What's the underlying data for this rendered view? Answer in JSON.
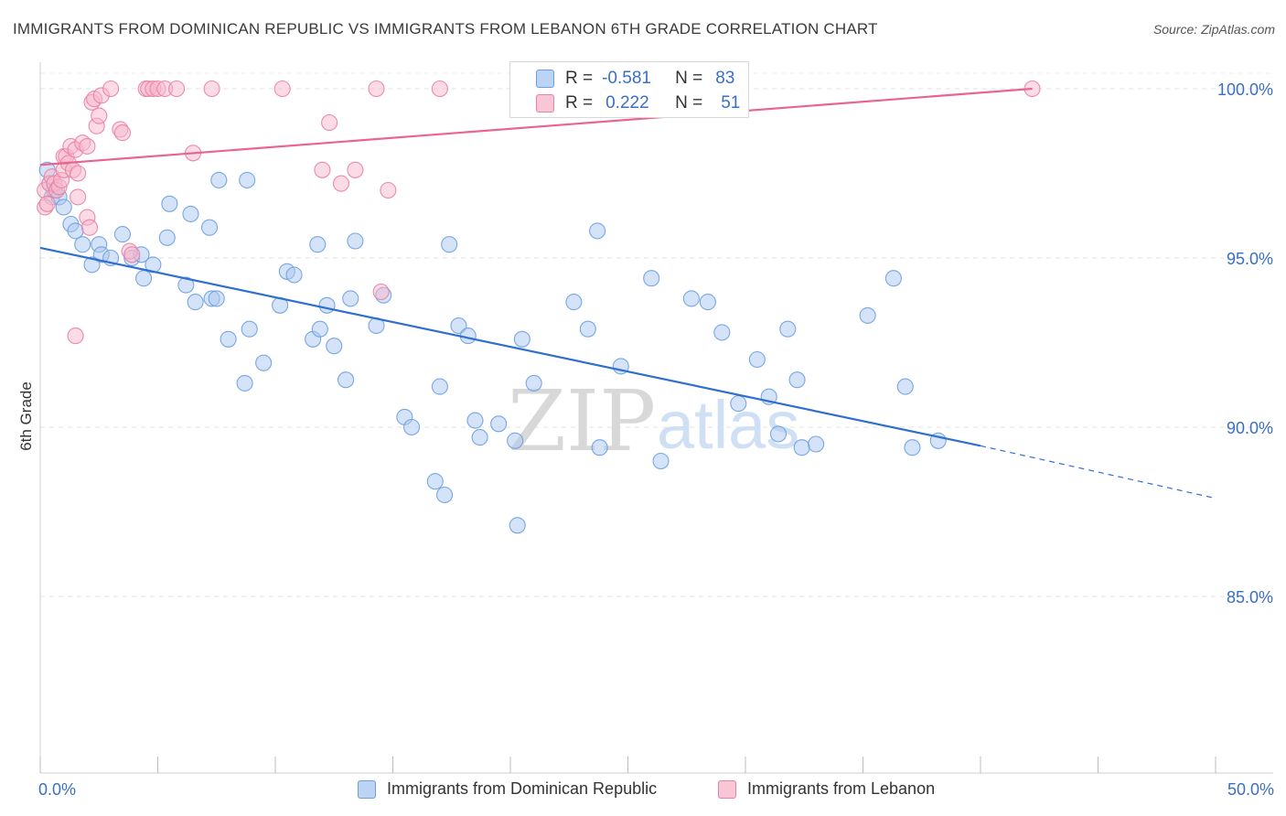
{
  "title": "IMMIGRANTS FROM DOMINICAN REPUBLIC VS IMMIGRANTS FROM LEBANON 6TH GRADE CORRELATION CHART",
  "source": "Source: ZipAtlas.com",
  "watermark": {
    "zip": "ZIP",
    "atlas": "atlas"
  },
  "stats": [
    {
      "r_label": "R =",
      "r_value": "-0.581",
      "n_label": "N =",
      "n_value": "83",
      "color": "#a9c8f0",
      "border": "#6a9ee0"
    },
    {
      "r_label": "R =",
      "r_value": "0.222",
      "n_label": "N =",
      "n_value": "51",
      "color": "#f7b8cc",
      "border": "#e97fa3"
    }
  ],
  "chart_data": {
    "type": "scatter",
    "title": "IMMIGRANTS FROM DOMINICAN REPUBLIC VS IMMIGRANTS FROM LEBANON 6TH GRADE CORRELATION CHART",
    "xlabel": "",
    "ylabel": "6th Grade",
    "xlim": [
      0,
      50
    ],
    "ylim": [
      80.5,
      101
    ],
    "x_tick_labels": [
      "0.0%",
      "50.0%"
    ],
    "y_ticks": [
      85,
      90,
      95,
      100
    ],
    "y_tick_labels": [
      "85.0%",
      "90.0%",
      "95.0%",
      "100.0%"
    ],
    "grid": true,
    "legend_position": "bottom-center",
    "series": [
      {
        "name": "Immigrants from Dominican Republic",
        "color": "#a9c8f0",
        "edge": "#6a9ee0",
        "trend": {
          "x0": 0,
          "y0": 95.3,
          "x1": 40,
          "y1": 89.45,
          "dash_to_x": 50,
          "dash_to_y": 87.9,
          "color": "#2f6fcf"
        },
        "points": [
          [
            0.3,
            97.6
          ],
          [
            0.4,
            97.2
          ],
          [
            0.5,
            96.8
          ],
          [
            0.6,
            97.0
          ],
          [
            0.8,
            96.8
          ],
          [
            1.0,
            96.5
          ],
          [
            1.3,
            96.0
          ],
          [
            1.5,
            95.8
          ],
          [
            1.8,
            95.4
          ],
          [
            2.5,
            95.4
          ],
          [
            2.6,
            95.1
          ],
          [
            3.0,
            95.0
          ],
          [
            3.5,
            95.7
          ],
          [
            3.9,
            95.0
          ],
          [
            4.3,
            95.1
          ],
          [
            2.2,
            94.8
          ],
          [
            4.8,
            94.8
          ],
          [
            5.5,
            96.6
          ],
          [
            5.4,
            95.6
          ],
          [
            6.4,
            96.3
          ],
          [
            7.2,
            95.9
          ],
          [
            7.6,
            97.3
          ],
          [
            8.8,
            97.3
          ],
          [
            4.4,
            94.4
          ],
          [
            6.2,
            94.2
          ],
          [
            6.6,
            93.7
          ],
          [
            7.3,
            93.8
          ],
          [
            7.5,
            93.8
          ],
          [
            8.9,
            92.9
          ],
          [
            8.0,
            92.6
          ],
          [
            9.5,
            91.9
          ],
          [
            8.7,
            91.3
          ],
          [
            10.2,
            93.6
          ],
          [
            10.5,
            94.6
          ],
          [
            10.8,
            94.5
          ],
          [
            11.8,
            95.4
          ],
          [
            12.2,
            93.6
          ],
          [
            13.4,
            95.5
          ],
          [
            13.0,
            91.4
          ],
          [
            11.6,
            92.6
          ],
          [
            11.9,
            92.9
          ],
          [
            12.5,
            92.4
          ],
          [
            14.3,
            93.0
          ],
          [
            13.2,
            93.8
          ],
          [
            14.6,
            93.9
          ],
          [
            15.5,
            90.3
          ],
          [
            15.8,
            90.0
          ],
          [
            17.4,
            95.4
          ],
          [
            17.8,
            93.0
          ],
          [
            18.2,
            92.7
          ],
          [
            17.0,
            91.2
          ],
          [
            18.5,
            90.2
          ],
          [
            19.5,
            90.1
          ],
          [
            18.7,
            89.7
          ],
          [
            20.2,
            89.6
          ],
          [
            20.5,
            92.6
          ],
          [
            21.0,
            91.3
          ],
          [
            22.7,
            93.7
          ],
          [
            23.3,
            92.9
          ],
          [
            23.7,
            95.8
          ],
          [
            23.8,
            89.4
          ],
          [
            24.7,
            91.8
          ],
          [
            26.0,
            94.4
          ],
          [
            27.7,
            93.8
          ],
          [
            28.4,
            93.7
          ],
          [
            26.4,
            89.0
          ],
          [
            29.0,
            92.8
          ],
          [
            29.7,
            90.7
          ],
          [
            30.5,
            92.0
          ],
          [
            31.0,
            90.9
          ],
          [
            31.4,
            89.8
          ],
          [
            31.8,
            92.9
          ],
          [
            32.2,
            91.4
          ],
          [
            32.4,
            89.4
          ],
          [
            33.0,
            89.5
          ],
          [
            35.2,
            93.3
          ],
          [
            36.3,
            94.4
          ],
          [
            36.8,
            91.2
          ],
          [
            37.1,
            89.4
          ],
          [
            38.2,
            89.6
          ],
          [
            17.2,
            88.0
          ],
          [
            16.8,
            88.4
          ],
          [
            20.3,
            87.1
          ]
        ]
      },
      {
        "name": "Immigrants from Lebanon",
        "color": "#f7b8cc",
        "edge": "#e97fa3",
        "trend": {
          "x0": 0,
          "y0": 97.75,
          "x1": 42.2,
          "y1": 100.0,
          "color": "#e8658f"
        },
        "points": [
          [
            0.2,
            97.0
          ],
          [
            0.2,
            96.5
          ],
          [
            0.3,
            96.6
          ],
          [
            0.4,
            97.2
          ],
          [
            0.5,
            97.4
          ],
          [
            0.6,
            97.2
          ],
          [
            0.7,
            97.0
          ],
          [
            0.8,
            97.1
          ],
          [
            0.9,
            97.3
          ],
          [
            1.0,
            97.6
          ],
          [
            1.0,
            98.0
          ],
          [
            1.1,
            98.0
          ],
          [
            1.2,
            97.8
          ],
          [
            1.3,
            98.3
          ],
          [
            1.4,
            97.6
          ],
          [
            1.5,
            98.2
          ],
          [
            1.6,
            97.5
          ],
          [
            1.6,
            96.8
          ],
          [
            1.8,
            98.4
          ],
          [
            2.0,
            98.3
          ],
          [
            2.2,
            99.6
          ],
          [
            2.3,
            99.7
          ],
          [
            2.4,
            98.9
          ],
          [
            2.5,
            99.2
          ],
          [
            2.6,
            99.8
          ],
          [
            3.0,
            100.0
          ],
          [
            3.4,
            98.8
          ],
          [
            3.5,
            98.7
          ],
          [
            3.8,
            95.2
          ],
          [
            3.9,
            95.1
          ],
          [
            4.5,
            100.0
          ],
          [
            4.6,
            100.0
          ],
          [
            4.8,
            100.0
          ],
          [
            5.0,
            100.0
          ],
          [
            5.3,
            100.0
          ],
          [
            5.8,
            100.0
          ],
          [
            6.5,
            98.1
          ],
          [
            7.3,
            100.0
          ],
          [
            10.3,
            100.0
          ],
          [
            12.3,
            99.0
          ],
          [
            12.0,
            97.6
          ],
          [
            12.8,
            97.2
          ],
          [
            13.4,
            97.6
          ],
          [
            14.3,
            100.0
          ],
          [
            17.0,
            100.0
          ],
          [
            14.8,
            97.0
          ],
          [
            1.5,
            92.7
          ],
          [
            2.0,
            96.2
          ],
          [
            2.1,
            95.9
          ],
          [
            14.5,
            94.0
          ],
          [
            42.2,
            100.0
          ]
        ]
      }
    ]
  }
}
